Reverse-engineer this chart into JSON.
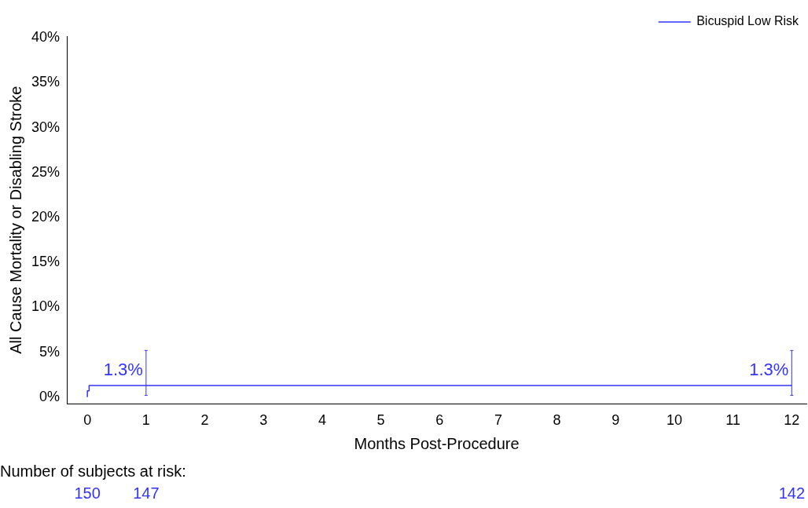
{
  "chart_data": {
    "type": "step",
    "xlabel": "Months Post-Procedure",
    "ylabel": "All Cause Mortality or Disabling Stroke",
    "xlim": [
      -0.35,
      12.25
    ],
    "xticks": [
      0,
      1,
      2,
      3,
      4,
      5,
      6,
      7,
      8,
      9,
      10,
      11,
      12
    ],
    "ylim": [
      -0.75,
      40.2
    ],
    "yticks": [
      {
        "value": 0,
        "label": "0%"
      },
      {
        "value": 5,
        "label": "5%"
      },
      {
        "value": 10,
        "label": "10%"
      },
      {
        "value": 15,
        "label": "15%"
      },
      {
        "value": 20,
        "label": "20%"
      },
      {
        "value": 25,
        "label": "25%"
      },
      {
        "value": 30,
        "label": "30%"
      },
      {
        "value": 35,
        "label": "35%"
      },
      {
        "value": 40,
        "label": "40%"
      }
    ],
    "series": [
      {
        "name": "Bicuspid Low Risk",
        "color": "#3333ff",
        "x": [
          0,
          0.03,
          0.33,
          1,
          12
        ],
        "values": [
          0,
          0.7,
          1.3,
          1.3,
          1.3
        ],
        "errors": [
          null,
          null,
          null,
          [
            0.2,
            5.2
          ],
          [
            0.2,
            5.2
          ]
        ],
        "value_labels": [
          null,
          null,
          null,
          "1.3%",
          "1.3%"
        ]
      }
    ],
    "annotations": [
      "Number of subjects at risk:",
      "150",
      "147",
      "142"
    ],
    "grid": false,
    "legend": "top right",
    "marker": "none",
    "line_style": "solid"
  }
}
